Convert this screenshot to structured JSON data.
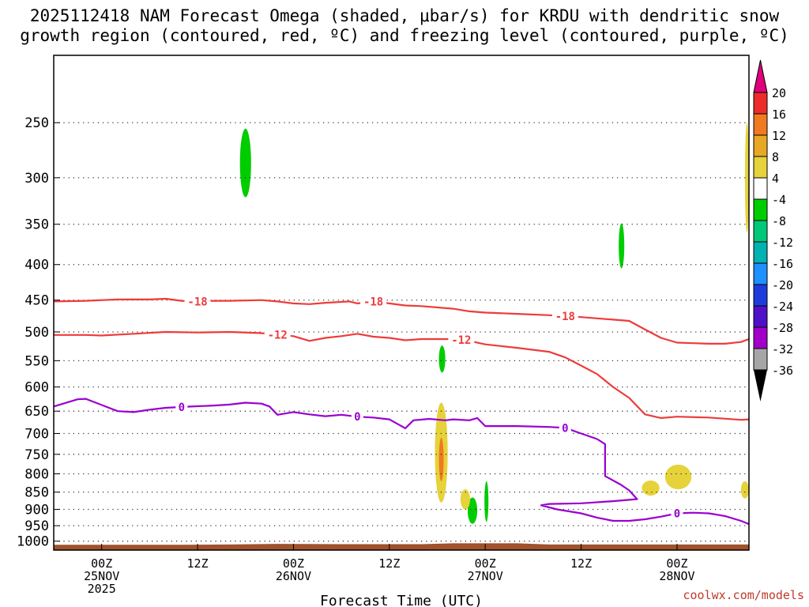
{
  "title_line1": "2025112418 NAM Forecast Omega (shaded, μbar/s) for KRDU with dendritic snow",
  "title_line2": "growth region (contoured, red, ºC) and freezing level (contoured, purple, ºC)",
  "credit": "coolwx.com/models",
  "chart_data": {
    "type": "area",
    "title": "2025112418 NAM Forecast Omega (shaded, μbar/s) for KRDU with dendritic snow growth region (contoured, red, ºC) and freezing level (contoured, purple, ºC)",
    "xlabel": "Forecast Time (UTC)",
    "ylabel": "",
    "x_unit": "forecast hour",
    "x_range": [
      -6,
      81
    ],
    "y_scale": "log",
    "y_range_hPa": [
      200,
      1030
    ],
    "grid": true,
    "x_ticks": [
      {
        "x": 0,
        "l1": "00Z",
        "l2": "25NOV",
        "l3": "2025"
      },
      {
        "x": 12,
        "l1": "12Z",
        "l2": "",
        "l3": ""
      },
      {
        "x": 24,
        "l1": "00Z",
        "l2": "26NOV",
        "l3": ""
      },
      {
        "x": 36,
        "l1": "12Z",
        "l2": "",
        "l3": ""
      },
      {
        "x": 48,
        "l1": "00Z",
        "l2": "27NOV",
        "l3": ""
      },
      {
        "x": 60,
        "l1": "12Z",
        "l2": "",
        "l3": ""
      },
      {
        "x": 72,
        "l1": "00Z",
        "l2": "28NOV",
        "l3": ""
      }
    ],
    "y_ticks": [
      250,
      300,
      350,
      400,
      450,
      500,
      550,
      600,
      650,
      700,
      750,
      800,
      850,
      900,
      950,
      1000
    ],
    "colorbar": {
      "labels": [
        "20",
        "16",
        "12",
        "8",
        "4",
        "-4",
        "-8",
        "-12",
        "-16",
        "-20",
        "-24",
        "-28",
        "-32",
        "-36"
      ],
      "colors": [
        "#ee2b2b",
        "#f07a20",
        "#e8a825",
        "#e6d23a",
        "#ffffff",
        "#00cd00",
        "#00c87a",
        "#00b2b2",
        "#1e90ff",
        "#1e3cdc",
        "#5010c8",
        "#a000c8",
        "#a6a6a6"
      ],
      "top_arrow_color": "#e0007a",
      "bottom_arrow_color": "#000000"
    },
    "contours": [
      {
        "value": "-18",
        "color": "#ee3b3b",
        "label_at": [
          12,
          34,
          58
        ],
        "points": [
          [
            -6,
            452
          ],
          [
            -2,
            451
          ],
          [
            2,
            449
          ],
          [
            6,
            449
          ],
          [
            8,
            448
          ],
          [
            10,
            451
          ],
          [
            12,
            452
          ],
          [
            14,
            451
          ],
          [
            16,
            451
          ],
          [
            20,
            450
          ],
          [
            22,
            452
          ],
          [
            24,
            455
          ],
          [
            26,
            456
          ],
          [
            28,
            454
          ],
          [
            31,
            452
          ],
          [
            32,
            455
          ],
          [
            34,
            452
          ],
          [
            36,
            455
          ],
          [
            38,
            458
          ],
          [
            40,
            459
          ],
          [
            44,
            463
          ],
          [
            46,
            467
          ],
          [
            48,
            469
          ],
          [
            52,
            471
          ],
          [
            56,
            473
          ],
          [
            60,
            476
          ],
          [
            62,
            478
          ],
          [
            64,
            480
          ],
          [
            66,
            482
          ],
          [
            68,
            496
          ],
          [
            70,
            510
          ],
          [
            72,
            518
          ],
          [
            74,
            519
          ],
          [
            76,
            520
          ],
          [
            78,
            520
          ],
          [
            80,
            517
          ],
          [
            81,
            512
          ]
        ]
      },
      {
        "value": "-12",
        "color": "#ee3b3b",
        "label_at": [
          22,
          45
        ],
        "points": [
          [
            -6,
            505
          ],
          [
            -2,
            505
          ],
          [
            0,
            506
          ],
          [
            4,
            503
          ],
          [
            8,
            500
          ],
          [
            12,
            501
          ],
          [
            16,
            500
          ],
          [
            20,
            502
          ],
          [
            24,
            507
          ],
          [
            26,
            515
          ],
          [
            28,
            510
          ],
          [
            30,
            507
          ],
          [
            32,
            503
          ],
          [
            34,
            508
          ],
          [
            36,
            510
          ],
          [
            38,
            514
          ],
          [
            40,
            512
          ],
          [
            42,
            512
          ],
          [
            44,
            512
          ],
          [
            46,
            515
          ],
          [
            48,
            521
          ],
          [
            52,
            527
          ],
          [
            56,
            534
          ],
          [
            58,
            544
          ],
          [
            60,
            559
          ],
          [
            62,
            575
          ],
          [
            64,
            600
          ],
          [
            66,
            622
          ],
          [
            68,
            657
          ],
          [
            70,
            665
          ],
          [
            72,
            662
          ],
          [
            76,
            664
          ],
          [
            80,
            669
          ],
          [
            81,
            668
          ]
        ]
      },
      {
        "value": "0",
        "color": "#9a00d0",
        "label_at": [
          10,
          32,
          58,
          72
        ],
        "points": [
          [
            -6,
            640
          ],
          [
            -3,
            625
          ],
          [
            -2,
            624
          ],
          [
            2,
            650
          ],
          [
            4,
            652
          ],
          [
            6,
            647
          ],
          [
            8,
            643
          ],
          [
            10,
            641
          ],
          [
            14,
            638
          ],
          [
            16,
            636
          ],
          [
            18,
            632
          ],
          [
            20,
            634
          ],
          [
            21,
            640
          ],
          [
            22,
            658
          ],
          [
            24,
            652
          ],
          [
            26,
            657
          ],
          [
            28,
            661
          ],
          [
            30,
            658
          ],
          [
            32,
            662
          ],
          [
            34,
            664
          ],
          [
            36,
            668
          ],
          [
            38,
            688
          ],
          [
            39,
            670
          ],
          [
            41,
            667
          ],
          [
            43,
            670
          ],
          [
            44,
            668
          ],
          [
            46,
            670
          ],
          [
            47,
            665
          ],
          [
            48,
            683
          ],
          [
            52,
            683
          ],
          [
            56,
            685
          ],
          [
            58,
            687
          ],
          [
            60,
            700
          ],
          [
            62,
            713
          ],
          [
            63,
            725
          ],
          [
            63,
            806
          ],
          [
            65,
            830
          ],
          [
            66,
            845
          ],
          [
            67,
            870
          ],
          [
            64,
            876
          ],
          [
            60,
            882
          ],
          [
            56,
            884
          ],
          [
            55,
            888
          ],
          [
            57,
            900
          ],
          [
            60,
            912
          ],
          [
            62,
            925
          ],
          [
            64,
            935
          ],
          [
            66,
            935
          ],
          [
            68,
            930
          ],
          [
            70,
            922
          ],
          [
            72,
            912
          ],
          [
            74,
            910
          ],
          [
            76,
            912
          ],
          [
            78,
            920
          ],
          [
            80,
            935
          ],
          [
            81,
            945
          ]
        ]
      }
    ],
    "shaded_regions": [
      {
        "color": "#00cd00",
        "x_range": [
          17.3,
          18.7
        ],
        "p_range": [
          255,
          320
        ]
      },
      {
        "color": "#00cd00",
        "x_range": [
          64.7,
          65.4
        ],
        "p_range": [
          349,
          405
        ]
      },
      {
        "color": "#00cd00",
        "x_range": [
          42.2,
          43.0
        ],
        "p_range": [
          523,
          572
        ]
      },
      {
        "color": "#00cd00",
        "x_range": [
          45.8,
          47.0
        ],
        "p_range": [
          865,
          944
        ]
      },
      {
        "color": "#00cd00",
        "x_range": [
          47.9,
          48.4
        ],
        "p_range": [
          820,
          938
        ]
      },
      {
        "color": "#e6d23a",
        "x_range": [
          41.7,
          43.3
        ],
        "p_range": [
          632,
          880
        ]
      },
      {
        "color": "#f07a20",
        "x_range": [
          42.2,
          42.8
        ],
        "p_range": [
          710,
          820
        ]
      },
      {
        "color": "#e6d23a",
        "x_range": [
          44.9,
          46.1
        ],
        "p_range": [
          842,
          900
        ]
      },
      {
        "color": "#e6d23a",
        "x_range": [
          70.5,
          73.8
        ],
        "p_range": [
          776,
          842
        ]
      },
      {
        "color": "#e6d23a",
        "x_range": [
          67.6,
          69.8
        ],
        "p_range": [
          818,
          860
        ]
      },
      {
        "color": "#e6d23a",
        "x_range": [
          80.0,
          81.0
        ],
        "p_range": [
          820,
          868
        ]
      },
      {
        "color": "#e6d23a",
        "x_range": [
          80.5,
          81.0
        ],
        "p_range": [
          250,
          360
        ]
      }
    ],
    "surface": {
      "color": "#a0522d",
      "points": [
        [
          -6,
          1012
        ],
        [
          10,
          1012
        ],
        [
          16,
          1011
        ],
        [
          22,
          1009
        ],
        [
          30,
          1010
        ],
        [
          40,
          1010
        ],
        [
          44,
          1007
        ],
        [
          52,
          1007
        ],
        [
          56,
          1011
        ],
        [
          81,
          1011
        ]
      ]
    }
  }
}
